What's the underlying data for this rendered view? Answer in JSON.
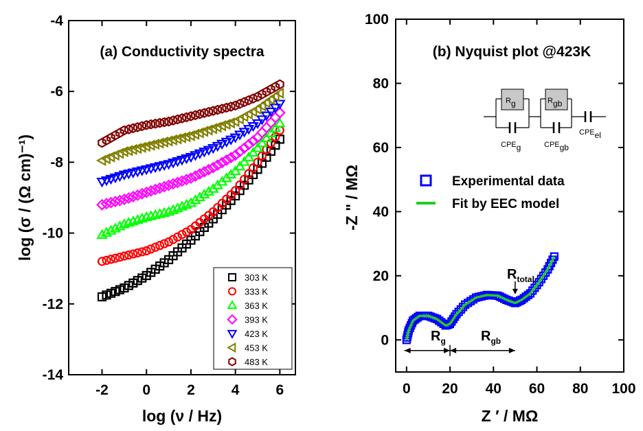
{
  "chart_data": [
    {
      "type": "scatter",
      "title": "(a) Conductivity spectra",
      "xlabel": "log (ν / Hz)",
      "ylabel": "log (σ / (Ω cm)⁻¹)",
      "xlim": [
        -3.5,
        6.7
      ],
      "ylim": [
        -14,
        -4
      ],
      "xticks": [
        -2,
        0,
        2,
        4,
        6
      ],
      "yticks": [
        -14,
        -12,
        -10,
        -8,
        -6,
        -4
      ],
      "legend_position": "bottom-right",
      "series": [
        {
          "name": "303 K",
          "marker": "square",
          "color": "#000000",
          "x": [
            -2,
            -1,
            0,
            1,
            2,
            3,
            4,
            5,
            6
          ],
          "y": [
            -11.8,
            -11.55,
            -11.2,
            -10.75,
            -10.2,
            -9.6,
            -8.95,
            -8.2,
            -7.35
          ]
        },
        {
          "name": "333 K",
          "marker": "circle",
          "color": "#ff0000",
          "x": [
            -2,
            -1,
            0,
            1,
            2,
            3,
            4,
            5,
            6
          ],
          "y": [
            -10.8,
            -10.65,
            -10.5,
            -10.25,
            -9.9,
            -9.4,
            -8.8,
            -8.0,
            -7.1
          ]
        },
        {
          "name": "363 K",
          "marker": "triangle-up",
          "color": "#00ff00",
          "x": [
            -2,
            -1,
            0,
            1,
            2,
            3,
            4,
            5,
            6
          ],
          "y": [
            -10.05,
            -9.75,
            -9.55,
            -9.4,
            -9.15,
            -8.75,
            -8.25,
            -7.6,
            -6.9
          ]
        },
        {
          "name": "393 K",
          "marker": "diamond",
          "color": "#ff00ff",
          "x": [
            -2,
            -1,
            0,
            1,
            2,
            3,
            4,
            5,
            6
          ],
          "y": [
            -9.2,
            -9.05,
            -8.85,
            -8.65,
            -8.45,
            -8.15,
            -7.8,
            -7.3,
            -6.6
          ]
        },
        {
          "name": "423 K",
          "marker": "triangle-down",
          "color": "#0000ff",
          "x": [
            -2,
            -1,
            0,
            1,
            2,
            3,
            4,
            5,
            6
          ],
          "y": [
            -8.55,
            -8.35,
            -8.2,
            -8.05,
            -7.85,
            -7.6,
            -7.3,
            -6.9,
            -6.35
          ]
        },
        {
          "name": "453 K",
          "marker": "triangle-left",
          "color": "#808000",
          "x": [
            -2,
            -1,
            0,
            1,
            2,
            3,
            4,
            5,
            6
          ],
          "y": [
            -7.95,
            -7.7,
            -7.55,
            -7.4,
            -7.25,
            -7.05,
            -6.85,
            -6.5,
            -6.05
          ]
        },
        {
          "name": "483 K",
          "marker": "hexagon",
          "color": "#800000",
          "x": [
            -2,
            -1,
            0,
            1,
            2,
            3,
            4,
            5,
            6
          ],
          "y": [
            -7.45,
            -7.1,
            -6.95,
            -6.85,
            -6.7,
            -6.55,
            -6.4,
            -6.15,
            -5.8
          ]
        }
      ]
    },
    {
      "type": "scatter",
      "title": "(b) Nyquist plot @423K",
      "xlabel": "Z ′ / MΩ",
      "ylabel": "-Z \" / MΩ",
      "xlim": [
        -5,
        100
      ],
      "ylim": [
        -10,
        100
      ],
      "xticks": [
        0,
        20,
        40,
        60,
        80,
        100
      ],
      "yticks": [
        0,
        20,
        40,
        60,
        80,
        100
      ],
      "legend_position": "middle-right",
      "series": [
        {
          "name": "Experimental data",
          "marker": "square",
          "color": "#0000ff",
          "x": [
            0,
            1,
            3,
            6,
            10,
            14,
            18,
            20,
            23,
            27,
            32,
            37,
            42,
            46,
            50,
            53,
            57,
            61,
            65,
            68
          ],
          "y": [
            0,
            3,
            6,
            7.5,
            7.5,
            6.5,
            4.5,
            5,
            8,
            11,
            13.2,
            14,
            13.8,
            12.5,
            11.5,
            12.5,
            14.5,
            18,
            22,
            26
          ]
        },
        {
          "name": "Fit by EEC model",
          "type": "line",
          "color": "#22cc22",
          "x": [
            0,
            1,
            3,
            6,
            10,
            14,
            18,
            20,
            23,
            27,
            32,
            37,
            42,
            46,
            50,
            53,
            57,
            61,
            65,
            68
          ],
          "y": [
            0,
            3,
            6,
            7.5,
            7.5,
            6.5,
            4.5,
            5,
            8,
            11,
            13.2,
            14,
            13.8,
            12.5,
            11.5,
            12.5,
            14.5,
            18,
            22,
            26
          ]
        }
      ],
      "annotations": {
        "r_total": {
          "main": "R",
          "sub": "total"
        },
        "r_g": {
          "main": "R",
          "sub": "g"
        },
        "r_gb": {
          "main": "R",
          "sub": "gb"
        }
      },
      "circuit": {
        "rg": {
          "main": "R",
          "sub": "g"
        },
        "rgb": {
          "main": "R",
          "sub": "gb"
        },
        "cpe_g": {
          "main": "CPE",
          "sub": "g"
        },
        "cpe_gb": {
          "main": "CPE",
          "sub": "gb"
        },
        "cpe_el": {
          "main": "CPE",
          "sub": "el"
        }
      }
    }
  ]
}
